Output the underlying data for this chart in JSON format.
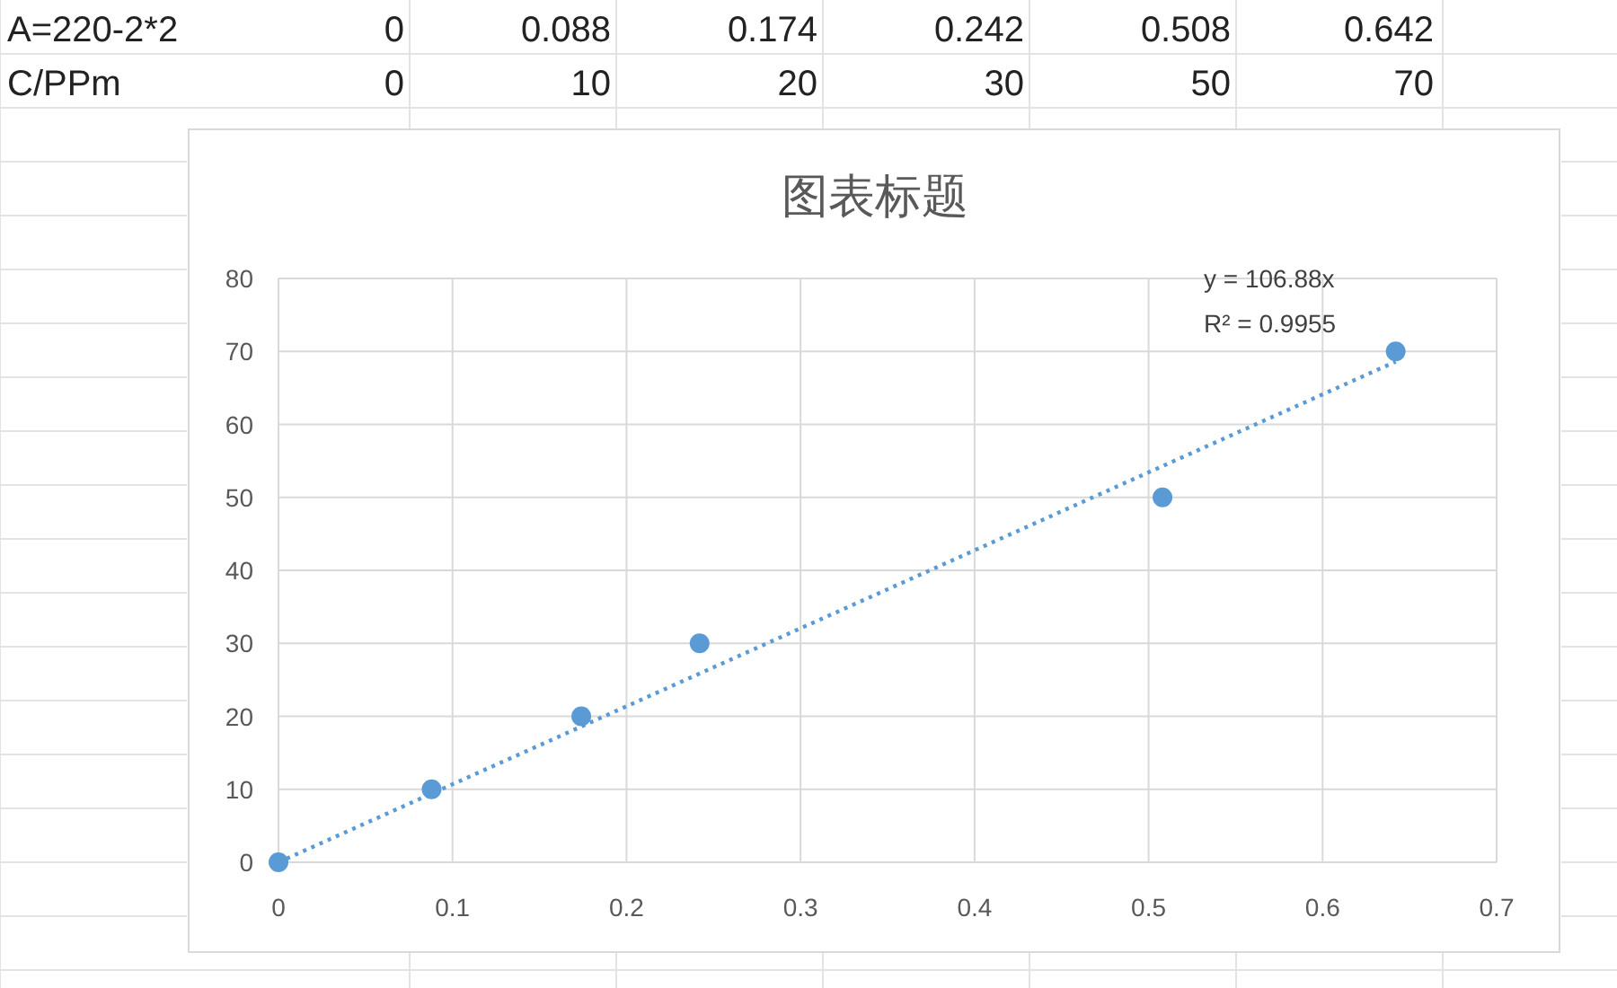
{
  "chart_data": {
    "type": "scatter",
    "title": "图表标题",
    "series": [
      {
        "color": "#5b9bd5",
        "marker": "circle",
        "x": [
          0,
          0.088,
          0.174,
          0.242,
          0.508,
          0.642
        ],
        "values": [
          0,
          10,
          20,
          30,
          50,
          70
        ]
      },
      {
        "type": "line",
        "color": "#5b9bd5",
        "line_style": "dotted",
        "marker": "none",
        "x": [
          0,
          0.642
        ],
        "values": [
          0,
          68.6
        ]
      }
    ],
    "xlim": [
      0,
      0.7
    ],
    "xticks": [
      0,
      0.1,
      0.2,
      0.3,
      0.4,
      0.5,
      0.6,
      0.7
    ],
    "ylim": [
      0,
      80
    ],
    "yticks": [
      0,
      10,
      20,
      30,
      40,
      50,
      60,
      70,
      80
    ],
    "grid": true,
    "annotations": [
      "y = 106.88x",
      "R² = 0.9955",
      "A=220-2*2",
      "0",
      "0.088",
      "0.174",
      "0.242",
      "0.508",
      "0.642",
      "C/PPm",
      "0",
      "10",
      "20",
      "30",
      "50",
      "70"
    ]
  }
}
